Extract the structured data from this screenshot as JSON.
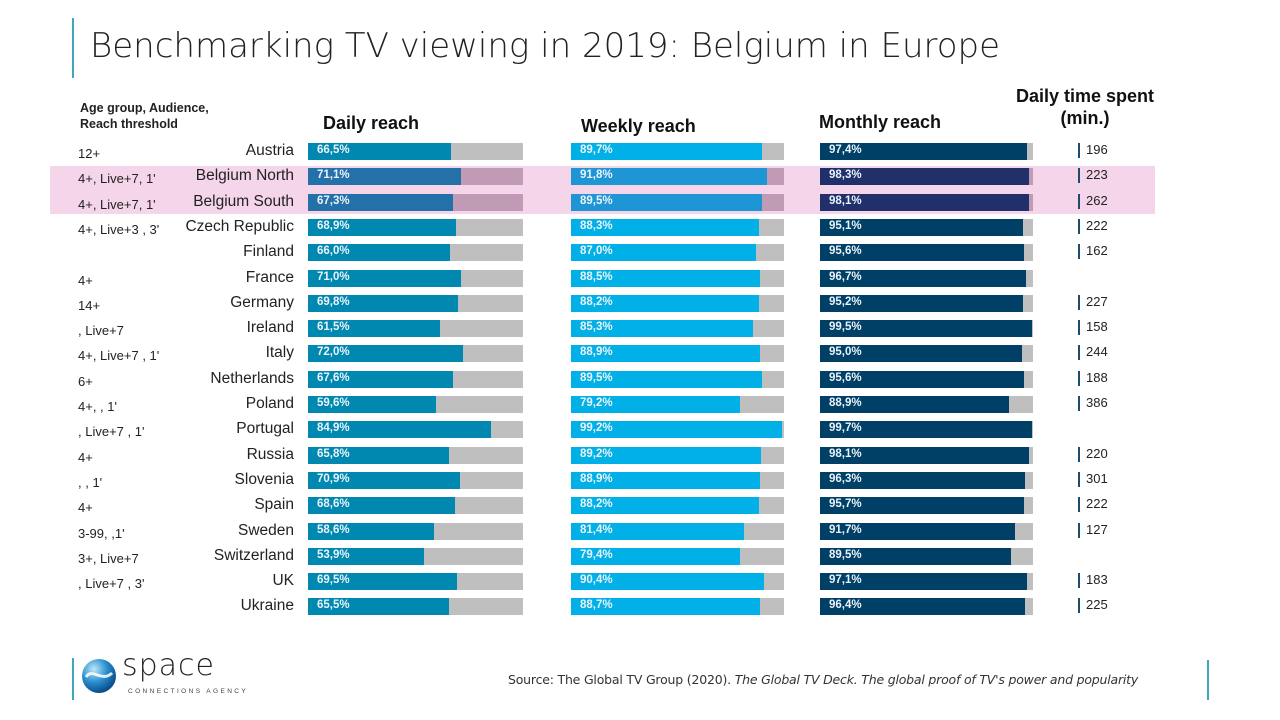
{
  "title": "Benchmarking TV viewing in 2019: Belgium in Europe",
  "meta_header_line1": "Age group, Audience,",
  "meta_header_line2": "Reach threshold",
  "columns": {
    "daily": "Daily reach",
    "weekly": "Weekly reach",
    "monthly": "Monthly reach",
    "time_line1": "Daily time spent",
    "time_line2": "(min.)"
  },
  "colors": {
    "daily": "#0088b0",
    "weekly": "#00b0e6",
    "monthly": "#003f66",
    "daily_hl": "#2470a8",
    "weekly_hl": "#1e96d6",
    "monthly_hl": "#21306a",
    "track": "#bfbfbf",
    "track_hl": "#c19bb6",
    "highlight_band": "#f4d5ea"
  },
  "chart_data": {
    "type": "bar",
    "title": "Benchmarking TV viewing in 2019: Belgium in Europe",
    "categories": [
      "Austria",
      "Belgium North",
      "Belgium South",
      "Czech Republic",
      "Finland",
      "France",
      "Germany",
      "Ireland",
      "Italy",
      "Netherlands",
      "Poland",
      "Portugal",
      "Russia",
      "Slovenia",
      "Spain",
      "Sweden",
      "Switzerland",
      "UK",
      "Ukraine"
    ],
    "highlighted": [
      "Belgium North",
      "Belgium South"
    ],
    "meta": [
      "12+",
      "4+, Live+7, 1'",
      "4+, Live+7, 1'",
      "4+, Live+3 , 3'",
      "",
      "4+",
      "14+",
      ", Live+7",
      "4+, Live+7 , 1'",
      "6+",
      "4+, , 1'",
      ", Live+7 , 1'",
      "4+",
      ", , 1'",
      "4+",
      "3-99, ,1'",
      "3+, Live+7",
      ", Live+7 , 3'",
      ""
    ],
    "series": [
      {
        "name": "Daily reach",
        "unit": "%",
        "values": [
          66.5,
          71.1,
          67.3,
          68.9,
          66.0,
          71.0,
          69.8,
          61.5,
          72.0,
          67.6,
          59.6,
          84.9,
          65.8,
          70.9,
          68.6,
          58.6,
          53.9,
          69.5,
          65.5
        ],
        "labels": [
          "66,5%",
          "71,1%",
          "67,3%",
          "68,9%",
          "66,0%",
          "71,0%",
          "69,8%",
          "61,5%",
          "72,0%",
          "67,6%",
          "59,6%",
          "84,9%",
          "65,8%",
          "70,9%",
          "68,6%",
          "58,6%",
          "53,9%",
          "69,5%",
          "65,5%"
        ]
      },
      {
        "name": "Weekly reach",
        "unit": "%",
        "values": [
          89.7,
          91.8,
          89.5,
          88.3,
          87.0,
          88.5,
          88.2,
          85.3,
          88.9,
          89.5,
          79.2,
          99.2,
          89.2,
          88.9,
          88.2,
          81.4,
          79.4,
          90.4,
          88.7
        ],
        "labels": [
          "89,7%",
          "91,8%",
          "89,5%",
          "88,3%",
          "87,0%",
          "88,5%",
          "88,2%",
          "85,3%",
          "88,9%",
          "89,5%",
          "79,2%",
          "99,2%",
          "89,2%",
          "88,9%",
          "88,2%",
          "81,4%",
          "79,4%",
          "90,4%",
          "88,7%"
        ]
      },
      {
        "name": "Monthly reach",
        "unit": "%",
        "values": [
          97.4,
          98.3,
          98.1,
          95.1,
          95.6,
          96.7,
          95.2,
          99.5,
          95.0,
          95.6,
          88.9,
          99.7,
          98.1,
          96.3,
          95.7,
          91.7,
          89.5,
          97.1,
          96.4
        ],
        "labels": [
          "97,4%",
          "98,3%",
          "98,1%",
          "95,1%",
          "95,6%",
          "96,7%",
          "95,2%",
          "99,5%",
          "95,0%",
          "95,6%",
          "88,9%",
          "99,7%",
          "98,1%",
          "96,3%",
          "95,7%",
          "91,7%",
          "89,5%",
          "97,1%",
          "96,4%"
        ]
      },
      {
        "name": "Daily time spent (min.)",
        "unit": "min",
        "values": [
          196,
          223,
          262,
          222,
          162,
          null,
          227,
          158,
          244,
          188,
          386,
          null,
          220,
          301,
          222,
          127,
          null,
          183,
          225
        ]
      }
    ],
    "ylim": [
      0,
      100
    ],
    "xlabel": "",
    "ylabel": ""
  },
  "source": {
    "prefix": "Source: The Global TV Group (2020). ",
    "italic": "The Global TV Deck. The global proof of TV's power and popularity"
  },
  "logo": {
    "word": "space",
    "sub": "CONNECTIONS AGENCY"
  }
}
